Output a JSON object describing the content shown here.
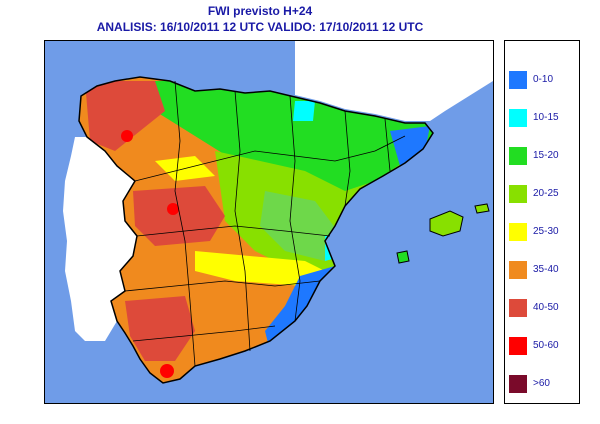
{
  "header": {
    "title": "FWI previsto H+24",
    "subtitle": "ANALISIS: 16/10/2011 12 UTC  VALIDO: 17/10/2011 12 UTC"
  },
  "legend": {
    "items": [
      {
        "label": "0-10",
        "color": "#1e78ff"
      },
      {
        "label": "10-15",
        "color": "#00ffff"
      },
      {
        "label": "15-20",
        "color": "#22dd22"
      },
      {
        "label": "20-25",
        "color": "#88e000"
      },
      {
        "label": "25-30",
        "color": "#ffff00"
      },
      {
        "label": "35-40",
        "color": "#f08a1e"
      },
      {
        "label": "40-50",
        "color": "#dd4a3a"
      },
      {
        "label": "50-60",
        "color": "#ff0000"
      },
      {
        "label": ">60",
        "color": "#7a0a2a"
      }
    ]
  },
  "colors": {
    "sea": "#6f9ce8",
    "title_text": "#1a1aa6"
  }
}
